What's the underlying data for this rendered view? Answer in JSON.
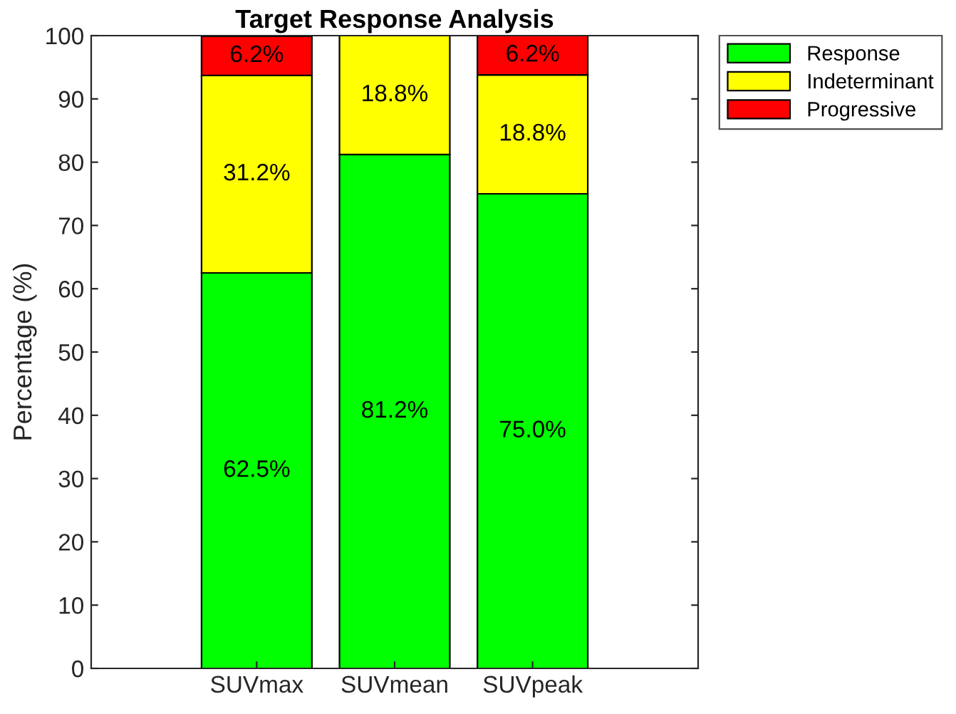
{
  "chart_data": {
    "type": "bar",
    "title": "Target Response Analysis",
    "ylabel": "Percentage (%)",
    "categories": [
      "SUVmax",
      "SUVmean",
      "SUVpeak"
    ],
    "stacked": true,
    "series": [
      {
        "name": "Response",
        "color": "#00ff00",
        "values": [
          62.5,
          81.2,
          75.0
        ],
        "value_labels": [
          "62.5%",
          "81.2%",
          "75.0%"
        ]
      },
      {
        "name": "Indeterminant",
        "color": "#ffff00",
        "values": [
          31.2,
          18.8,
          18.8
        ],
        "value_labels": [
          "31.2%",
          "18.8%",
          "18.8%"
        ]
      },
      {
        "name": "Progressive",
        "color": "#ff0000",
        "values": [
          6.2,
          null,
          6.2
        ],
        "value_labels": [
          "6.2%",
          null,
          "6.2%"
        ]
      }
    ],
    "ylim": [
      0,
      100
    ],
    "yticks": [
      0,
      10,
      20,
      30,
      40,
      50,
      60,
      70,
      80,
      90,
      100
    ],
    "grid": false,
    "legend": "top right"
  }
}
